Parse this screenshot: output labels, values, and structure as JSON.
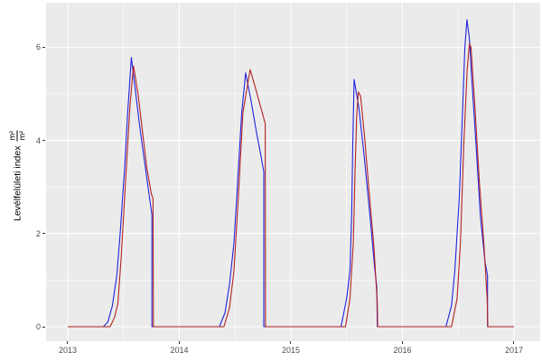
{
  "chart_data": {
    "type": "line",
    "title": "",
    "xlabel": "",
    "ylabel_main": "Levélfelületi index",
    "ylabel_fraction": {
      "numerator": "m²",
      "denominator": "m²"
    },
    "legend": "none",
    "grid": {
      "major": true,
      "minor": true,
      "color": "#ffffff"
    },
    "panel_background": "#ebebeb",
    "axis_text_color": "#4d4d4d",
    "xlim": [
      2012.806,
      2017.235
    ],
    "ylim": [
      -0.31,
      6.957
    ],
    "x_ticks": [
      2013,
      2014,
      2015,
      2016,
      2017
    ],
    "x_tick_labels": [
      "2013",
      "2014",
      "2015",
      "2016",
      "2017"
    ],
    "x_minor_ticks": [
      2013.5,
      2014.5,
      2015.5,
      2016.5
    ],
    "y_ticks": [
      0,
      2,
      4,
      6
    ],
    "y_tick_labels": [
      "0",
      "2",
      "4",
      "6"
    ],
    "y_minor_ticks": [
      1,
      3,
      5
    ],
    "series": [
      {
        "name": "series-blue",
        "color": "#2222dd",
        "points": [
          [
            2013.0,
            0
          ],
          [
            2013.32,
            0
          ],
          [
            2013.36,
            0.1
          ],
          [
            2013.4,
            0.45
          ],
          [
            2013.44,
            1.1
          ],
          [
            2013.47,
            2.0
          ],
          [
            2013.51,
            3.4
          ],
          [
            2013.54,
            4.7
          ],
          [
            2013.57,
            5.78
          ],
          [
            2013.6,
            5.2
          ],
          [
            2013.64,
            4.4
          ],
          [
            2013.68,
            3.7
          ],
          [
            2013.72,
            3.0
          ],
          [
            2013.755,
            2.4
          ],
          [
            2013.755,
            0
          ],
          [
            2014.36,
            0
          ],
          [
            2014.41,
            0.3
          ],
          [
            2014.45,
            0.9
          ],
          [
            2014.49,
            1.8
          ],
          [
            2014.52,
            3.0
          ],
          [
            2014.56,
            4.6
          ],
          [
            2014.595,
            5.45
          ],
          [
            2014.64,
            4.9
          ],
          [
            2014.69,
            4.2
          ],
          [
            2014.73,
            3.7
          ],
          [
            2014.757,
            3.33
          ],
          [
            2014.757,
            0
          ],
          [
            2015.45,
            0
          ],
          [
            2015.5,
            0.6
          ],
          [
            2015.53,
            1.2
          ],
          [
            2015.545,
            2.4
          ],
          [
            2015.555,
            3.9
          ],
          [
            2015.567,
            5.31
          ],
          [
            2015.61,
            4.7
          ],
          [
            2015.66,
            3.6
          ],
          [
            2015.71,
            2.35
          ],
          [
            2015.75,
            1.3
          ],
          [
            2015.77,
            0.85
          ],
          [
            2015.775,
            0
          ],
          [
            2016.39,
            0
          ],
          [
            2016.44,
            0.45
          ],
          [
            2016.47,
            1.2
          ],
          [
            2016.51,
            2.8
          ],
          [
            2016.54,
            4.7
          ],
          [
            2016.56,
            6.0
          ],
          [
            2016.578,
            6.59
          ],
          [
            2016.6,
            6.2
          ],
          [
            2016.62,
            5.4
          ],
          [
            2016.66,
            3.9
          ],
          [
            2016.7,
            2.35
          ],
          [
            2016.74,
            1.4
          ],
          [
            2016.763,
            1.1
          ],
          [
            2016.763,
            0
          ],
          [
            2017.0,
            0
          ]
        ]
      },
      {
        "name": "series-red",
        "color": "#b22222",
        "points": [
          [
            2013.0,
            0
          ],
          [
            2013.38,
            0
          ],
          [
            2013.42,
            0.2
          ],
          [
            2013.45,
            0.5
          ],
          [
            2013.48,
            1.5
          ],
          [
            2013.52,
            3.2
          ],
          [
            2013.56,
            4.8
          ],
          [
            2013.59,
            5.6
          ],
          [
            2013.63,
            5.0
          ],
          [
            2013.67,
            4.2
          ],
          [
            2013.71,
            3.4
          ],
          [
            2013.75,
            2.85
          ],
          [
            2013.765,
            2.75
          ],
          [
            2013.768,
            0
          ],
          [
            2014.4,
            0
          ],
          [
            2014.45,
            0.4
          ],
          [
            2014.49,
            1.2
          ],
          [
            2014.53,
            2.8
          ],
          [
            2014.57,
            4.6
          ],
          [
            2014.635,
            5.52
          ],
          [
            2014.68,
            5.15
          ],
          [
            2014.72,
            4.8
          ],
          [
            2014.77,
            4.36
          ],
          [
            2014.773,
            0
          ],
          [
            2015.49,
            0
          ],
          [
            2015.53,
            0.6
          ],
          [
            2015.56,
            1.8
          ],
          [
            2015.575,
            3.3
          ],
          [
            2015.59,
            4.5
          ],
          [
            2015.605,
            5.04
          ],
          [
            2015.625,
            4.95
          ],
          [
            2015.66,
            4.1
          ],
          [
            2015.7,
            2.95
          ],
          [
            2015.745,
            1.7
          ],
          [
            2015.775,
            0.5
          ],
          [
            2015.778,
            0
          ],
          [
            2016.44,
            0
          ],
          [
            2016.49,
            0.6
          ],
          [
            2016.52,
            1.8
          ],
          [
            2016.55,
            3.9
          ],
          [
            2016.58,
            5.5
          ],
          [
            2016.6,
            6.08
          ],
          [
            2016.615,
            6.0
          ],
          [
            2016.65,
            4.7
          ],
          [
            2016.69,
            3.1
          ],
          [
            2016.73,
            1.8
          ],
          [
            2016.76,
            0.6
          ],
          [
            2016.765,
            0
          ],
          [
            2017.0,
            0
          ]
        ]
      }
    ]
  }
}
